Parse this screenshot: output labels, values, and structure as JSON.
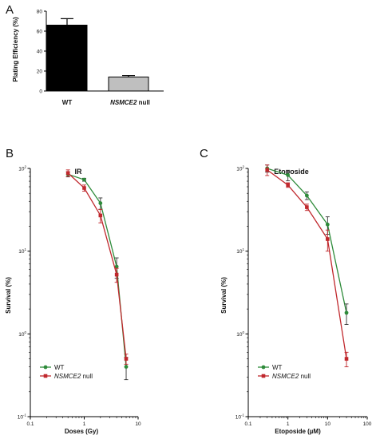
{
  "chart_data": [
    {
      "panel": "A",
      "type": "bar",
      "title": "",
      "ylabel": "Plating Efficiency (%)",
      "xlabel": "",
      "categories": [
        "WT",
        "NSMCE2 null"
      ],
      "category_prefix": [
        "",
        "NSMCE2"
      ],
      "category_suffix": [
        "WT",
        "null"
      ],
      "values": [
        66,
        14
      ],
      "errors": [
        6.5,
        1.5
      ],
      "bar_colors": [
        "#000000",
        "#bfbfbf"
      ],
      "ylim": [
        0,
        80
      ],
      "yticks": [
        "0",
        "20",
        "40",
        "60",
        "80"
      ]
    },
    {
      "panel": "B",
      "type": "line",
      "title": "IR",
      "xlabel": "Doses (Gy)",
      "ylabel": "Survival (%)",
      "xscale": "log",
      "yscale": "log",
      "xlim": [
        0.1,
        10
      ],
      "ylim": [
        0.1,
        100
      ],
      "xticks": [
        "0.1",
        "1",
        "10"
      ],
      "legend_position": "lower-left",
      "series": [
        {
          "name": "WT",
          "name_italic": "",
          "name_rest": "WT",
          "color": "#2e8b3a",
          "marker": "circle",
          "x": [
            0.5,
            1,
            2,
            4,
            6
          ],
          "y": [
            85,
            73,
            38,
            6.5,
            0.4
          ],
          "err": [
            6,
            3,
            6,
            1.8,
            0.12
          ]
        },
        {
          "name": "NSMCE2 null",
          "name_italic": "NSMCE2",
          "name_rest": " null",
          "color": "#c0282d",
          "marker": "square",
          "x": [
            0.5,
            1,
            2,
            4,
            6
          ],
          "y": [
            88,
            58,
            27,
            5.2,
            0.5
          ],
          "err": [
            8,
            5,
            5,
            1.0,
            0.07
          ]
        }
      ]
    },
    {
      "panel": "C",
      "type": "line",
      "title": "Etoposide",
      "xlabel": "Etoposide (µM)",
      "ylabel": "Survival (%)",
      "xscale": "log",
      "yscale": "log",
      "xlim": [
        0.1,
        100
      ],
      "ylim": [
        0.1,
        100
      ],
      "xticks": [
        "0.1",
        "1",
        "10",
        "100"
      ],
      "legend_position": "lower-left",
      "series": [
        {
          "name": "WT",
          "name_italic": "",
          "name_rest": "WT",
          "color": "#2e8b3a",
          "marker": "circle",
          "x": [
            0.3,
            1,
            3,
            10,
            30
          ],
          "y": [
            100,
            83,
            47,
            21,
            1.8
          ],
          "err": [
            10,
            12,
            5,
            5,
            0.5
          ]
        },
        {
          "name": "NSMCE2 null",
          "name_italic": "NSMCE2",
          "name_rest": " null",
          "color": "#c0282d",
          "marker": "square",
          "x": [
            0.3,
            1,
            3,
            10,
            30
          ],
          "y": [
            96,
            63,
            34,
            14,
            0.5
          ],
          "err": [
            14,
            4,
            3,
            4,
            0.1
          ]
        }
      ]
    }
  ]
}
